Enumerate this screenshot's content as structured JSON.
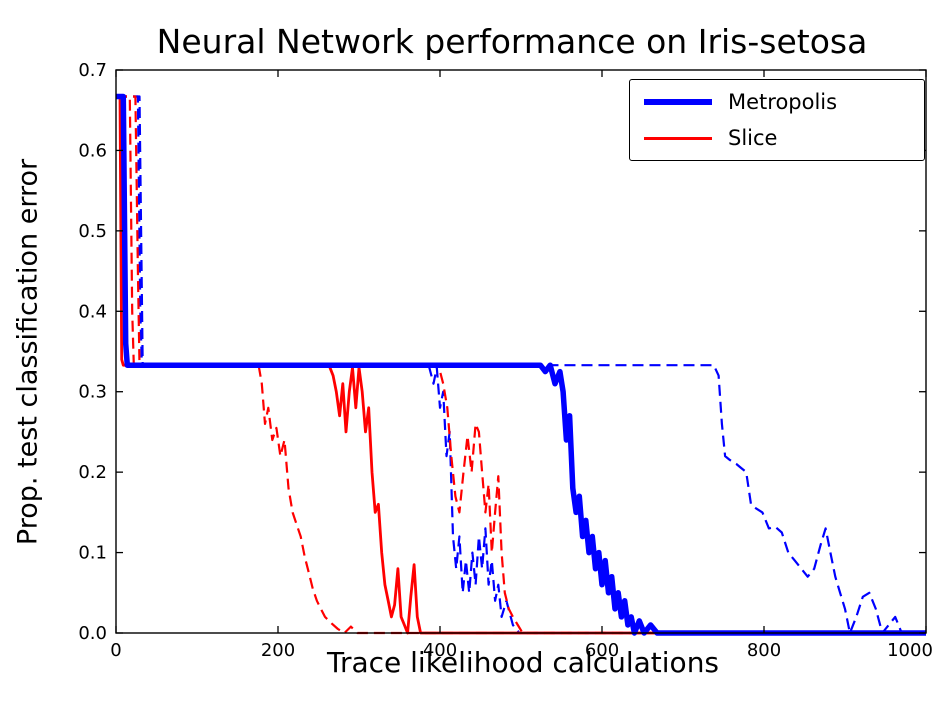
{
  "figure": {
    "title": "Neural Network performance on Iris-setosa",
    "xlabel": "Trace likelihood calculations",
    "ylabel": "Prop. test classification error"
  },
  "legend": {
    "position": "upper right",
    "entries": [
      {
        "label": "Metropolis",
        "color": "#0000ff",
        "width": 5.5,
        "dash": "solid"
      },
      {
        "label": "Slice",
        "color": "#ff0000",
        "width": 2.8,
        "dash": "solid"
      }
    ]
  },
  "chart_data": {
    "type": "line",
    "title": "Neural Network performance on Iris-setosa",
    "xlabel": "Trace likelihood calculations",
    "ylabel": "Prop. test classification error",
    "xlim": [
      0,
      1000
    ],
    "ylim": [
      0,
      0.7
    ],
    "grid": false,
    "legend_position": "upper right",
    "xticks": [
      {
        "value": 0,
        "label": "0"
      },
      {
        "value": 200,
        "label": "200"
      },
      {
        "value": 400,
        "label": "400"
      },
      {
        "value": 600,
        "label": "600"
      },
      {
        "value": 800,
        "label": "800"
      },
      {
        "value": 1000,
        "label": "1000"
      }
    ],
    "yticks": [
      {
        "value": 0.0,
        "label": "0.0"
      },
      {
        "value": 0.1,
        "label": "0.1"
      },
      {
        "value": 0.2,
        "label": "0.2"
      },
      {
        "value": 0.3,
        "label": "0.3"
      },
      {
        "value": 0.4,
        "label": "0.4"
      },
      {
        "value": 0.5,
        "label": "0.5"
      },
      {
        "value": 0.6,
        "label": "0.6"
      },
      {
        "value": 0.7,
        "label": "0.7"
      }
    ],
    "series": [
      {
        "name": "metropolis-dashed-b",
        "legend": "Metropolis",
        "color": "#0000ff",
        "width": 2.2,
        "dash": "dashed",
        "points": [
          [
            0,
            0.667
          ],
          [
            29,
            0.667
          ],
          [
            33,
            0.333
          ],
          [
            738,
            0.333
          ],
          [
            744,
            0.32
          ],
          [
            748,
            0.26
          ],
          [
            752,
            0.22
          ],
          [
            758,
            0.215
          ],
          [
            766,
            0.21
          ],
          [
            772,
            0.205
          ],
          [
            778,
            0.2
          ],
          [
            784,
            0.16
          ],
          [
            790,
            0.155
          ],
          [
            798,
            0.15
          ],
          [
            806,
            0.13
          ],
          [
            814,
            0.132
          ],
          [
            822,
            0.125
          ],
          [
            830,
            0.1
          ],
          [
            838,
            0.09
          ],
          [
            846,
            0.08
          ],
          [
            854,
            0.07
          ],
          [
            862,
            0.08
          ],
          [
            870,
            0.11
          ],
          [
            876,
            0.13
          ],
          [
            882,
            0.1
          ],
          [
            888,
            0.07
          ],
          [
            894,
            0.05
          ],
          [
            900,
            0.03
          ],
          [
            906,
            0.0
          ],
          [
            914,
            0.02
          ],
          [
            922,
            0.045
          ],
          [
            930,
            0.05
          ],
          [
            938,
            0.03
          ],
          [
            946,
            0.0
          ],
          [
            954,
            0.01
          ],
          [
            962,
            0.02
          ],
          [
            970,
            0.0
          ],
          [
            1000,
            0.0
          ]
        ]
      },
      {
        "name": "metropolis-dashed-a",
        "legend": "Metropolis",
        "color": "#0000ff",
        "width": 2.2,
        "dash": "dashed",
        "points": [
          [
            0,
            0.667
          ],
          [
            27,
            0.667
          ],
          [
            30,
            0.4
          ],
          [
            32,
            0.333
          ],
          [
            386,
            0.333
          ],
          [
            392,
            0.31
          ],
          [
            396,
            0.33
          ],
          [
            400,
            0.28
          ],
          [
            404,
            0.3
          ],
          [
            408,
            0.22
          ],
          [
            412,
            0.25
          ],
          [
            416,
            0.12
          ],
          [
            420,
            0.08
          ],
          [
            424,
            0.12
          ],
          [
            428,
            0.05
          ],
          [
            432,
            0.09
          ],
          [
            436,
            0.05
          ],
          [
            440,
            0.1
          ],
          [
            444,
            0.06
          ],
          [
            448,
            0.12
          ],
          [
            452,
            0.08
          ],
          [
            456,
            0.13
          ],
          [
            460,
            0.06
          ],
          [
            464,
            0.09
          ],
          [
            468,
            0.04
          ],
          [
            472,
            0.06
          ],
          [
            476,
            0.02
          ],
          [
            482,
            0.04
          ],
          [
            490,
            0.01
          ],
          [
            498,
            0.0
          ],
          [
            1000,
            0.0
          ]
        ]
      },
      {
        "name": "slice-dashed-b",
        "legend": "Slice",
        "color": "#ff0000",
        "width": 2.2,
        "dash": "dashed",
        "points": [
          [
            0,
            0.667
          ],
          [
            24,
            0.667
          ],
          [
            27,
            0.45
          ],
          [
            29,
            0.333
          ],
          [
            398,
            0.333
          ],
          [
            404,
            0.31
          ],
          [
            409,
            0.28
          ],
          [
            414,
            0.22
          ],
          [
            419,
            0.17
          ],
          [
            424,
            0.15
          ],
          [
            429,
            0.2
          ],
          [
            434,
            0.245
          ],
          [
            439,
            0.2
          ],
          [
            444,
            0.26
          ],
          [
            448,
            0.25
          ],
          [
            452,
            0.2
          ],
          [
            456,
            0.15
          ],
          [
            460,
            0.185
          ],
          [
            464,
            0.1
          ],
          [
            468,
            0.15
          ],
          [
            472,
            0.195
          ],
          [
            476,
            0.1
          ],
          [
            480,
            0.05
          ],
          [
            485,
            0.03
          ],
          [
            490,
            0.02
          ],
          [
            496,
            0.01
          ],
          [
            502,
            0.0
          ],
          [
            1000,
            0.0
          ]
        ]
      },
      {
        "name": "slice-dashed-a",
        "legend": "Slice",
        "color": "#ff0000",
        "width": 2.2,
        "dash": "dashed",
        "points": [
          [
            0,
            0.667
          ],
          [
            17,
            0.667
          ],
          [
            20,
            0.4
          ],
          [
            22,
            0.333
          ],
          [
            176,
            0.333
          ],
          [
            180,
            0.31
          ],
          [
            184,
            0.26
          ],
          [
            188,
            0.28
          ],
          [
            193,
            0.24
          ],
          [
            198,
            0.255
          ],
          [
            203,
            0.22
          ],
          [
            208,
            0.24
          ],
          [
            213,
            0.18
          ],
          [
            218,
            0.15
          ],
          [
            223,
            0.135
          ],
          [
            228,
            0.12
          ],
          [
            233,
            0.095
          ],
          [
            238,
            0.075
          ],
          [
            243,
            0.055
          ],
          [
            248,
            0.04
          ],
          [
            253,
            0.03
          ],
          [
            258,
            0.02
          ],
          [
            266,
            0.012
          ],
          [
            274,
            0.005
          ],
          [
            282,
            0.0
          ],
          [
            290,
            0.008
          ],
          [
            298,
            0.0
          ],
          [
            1000,
            0.0
          ]
        ]
      },
      {
        "name": "slice-solid",
        "legend": "Slice",
        "color": "#ff0000",
        "width": 2.8,
        "dash": "solid",
        "points": [
          [
            0,
            0.667
          ],
          [
            5,
            0.667
          ],
          [
            7,
            0.34
          ],
          [
            9,
            0.333
          ],
          [
            263,
            0.333
          ],
          [
            268,
            0.32
          ],
          [
            272,
            0.3
          ],
          [
            276,
            0.27
          ],
          [
            280,
            0.31
          ],
          [
            284,
            0.25
          ],
          [
            288,
            0.3
          ],
          [
            292,
            0.33
          ],
          [
            296,
            0.28
          ],
          [
            300,
            0.33
          ],
          [
            304,
            0.3
          ],
          [
            308,
            0.25
          ],
          [
            312,
            0.28
          ],
          [
            316,
            0.2
          ],
          [
            320,
            0.15
          ],
          [
            324,
            0.16
          ],
          [
            328,
            0.1
          ],
          [
            332,
            0.06
          ],
          [
            336,
            0.04
          ],
          [
            340,
            0.02
          ],
          [
            344,
            0.035
          ],
          [
            348,
            0.08
          ],
          [
            352,
            0.02
          ],
          [
            356,
            0.01
          ],
          [
            360,
            0.0
          ],
          [
            364,
            0.045
          ],
          [
            368,
            0.085
          ],
          [
            372,
            0.02
          ],
          [
            376,
            0.0
          ],
          [
            1000,
            0.0
          ]
        ]
      },
      {
        "name": "metropolis-solid",
        "legend": "Metropolis",
        "color": "#0000ff",
        "width": 5.5,
        "dash": "solid",
        "points": [
          [
            0,
            0.667
          ],
          [
            9,
            0.667
          ],
          [
            12,
            0.36
          ],
          [
            14,
            0.333
          ],
          [
            524,
            0.333
          ],
          [
            530,
            0.325
          ],
          [
            536,
            0.333
          ],
          [
            542,
            0.31
          ],
          [
            548,
            0.325
          ],
          [
            552,
            0.3
          ],
          [
            556,
            0.24
          ],
          [
            560,
            0.27
          ],
          [
            564,
            0.18
          ],
          [
            568,
            0.15
          ],
          [
            572,
            0.17
          ],
          [
            576,
            0.12
          ],
          [
            580,
            0.14
          ],
          [
            584,
            0.1
          ],
          [
            588,
            0.12
          ],
          [
            592,
            0.08
          ],
          [
            596,
            0.1
          ],
          [
            600,
            0.06
          ],
          [
            604,
            0.09
          ],
          [
            608,
            0.05
          ],
          [
            612,
            0.07
          ],
          [
            616,
            0.03
          ],
          [
            620,
            0.05
          ],
          [
            624,
            0.02
          ],
          [
            628,
            0.04
          ],
          [
            632,
            0.01
          ],
          [
            636,
            0.02
          ],
          [
            640,
            0.0
          ],
          [
            646,
            0.015
          ],
          [
            652,
            0.0
          ],
          [
            660,
            0.01
          ],
          [
            668,
            0.0
          ],
          [
            1000,
            0.0
          ]
        ]
      }
    ]
  }
}
